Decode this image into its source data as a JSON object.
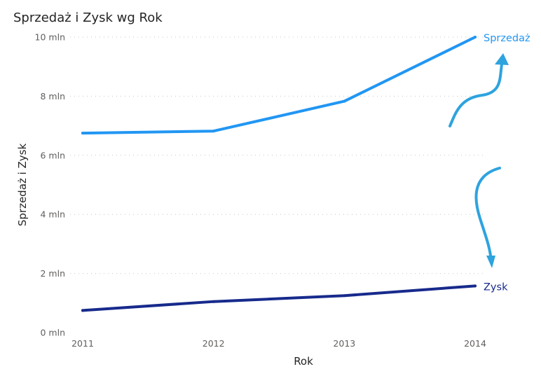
{
  "chart_data": {
    "type": "line",
    "title": "Sprzedaż i Zysk wg Rok",
    "xlabel": "Rok",
    "ylabel": "Sprzedaż i Zysk",
    "categories": [
      "2011",
      "2012",
      "2013",
      "2014"
    ],
    "ylim": [
      0,
      10000000
    ],
    "yticks": [
      0,
      2000000,
      4000000,
      6000000,
      8000000,
      10000000
    ],
    "ytick_labels": [
      "0 mln",
      "2 mln",
      "4 mln",
      "6 mln",
      "8 mln",
      "10 mln"
    ],
    "grid": true,
    "legend": "none",
    "series": [
      {
        "name": "Sprzedaż",
        "color": "#2196f3",
        "values": [
          6750000,
          6820000,
          7830000,
          10000000
        ]
      },
      {
        "name": "Zysk",
        "color": "#172a8c",
        "values": [
          750000,
          1050000,
          1250000,
          1580000
        ]
      }
    ],
    "annotation_color": "#2ea3de"
  }
}
